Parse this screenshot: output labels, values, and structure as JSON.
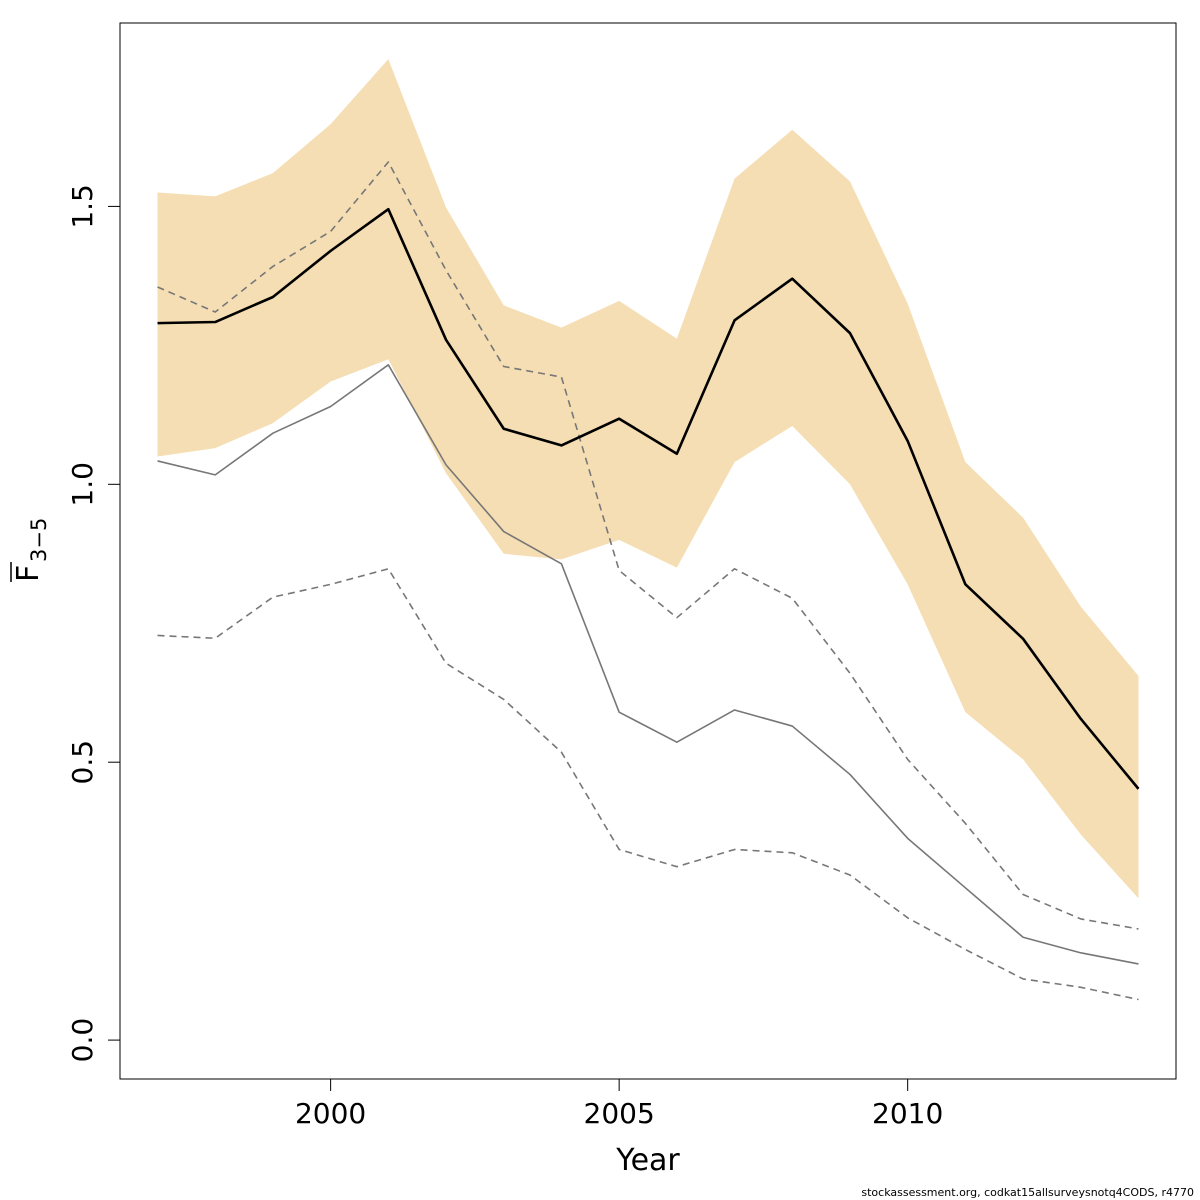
{
  "chart_data": {
    "type": "line",
    "xlabel": "Year",
    "ylabel_main": "F",
    "ylabel_sub": "3−5",
    "footer": "stockassessment.org, codkat15allsurveysnotq4CODS, r4770",
    "xlim": [
      1996.35,
      2014.65
    ],
    "ylim": [
      -0.07,
      1.83
    ],
    "x_ticks": [
      2000,
      2005,
      2010
    ],
    "x_tick_labels": [
      "2000",
      "2005",
      "2010"
    ],
    "y_ticks": [
      0.0,
      0.5,
      1.0,
      1.5
    ],
    "y_tick_labels": [
      "0.0",
      "0.5",
      "1.0",
      "1.5"
    ],
    "grid": false,
    "colors": {
      "band": "#f5deb3",
      "estimate": "#000000",
      "comparison": "#777777"
    },
    "x": [
      1997,
      1998,
      1999,
      2000,
      2001,
      2002,
      2003,
      2004,
      2005,
      2006,
      2007,
      2008,
      2009,
      2010,
      2011,
      2012,
      2013,
      2014
    ],
    "series": [
      {
        "role": "confidence_band",
        "lower": [
          1.05,
          1.065,
          1.11,
          1.185,
          1.225,
          1.02,
          0.875,
          0.865,
          0.9,
          0.85,
          1.04,
          1.105,
          1.0,
          0.82,
          0.59,
          0.505,
          0.37,
          0.255
        ],
        "upper": [
          1.525,
          1.518,
          1.56,
          1.648,
          1.765,
          1.498,
          1.322,
          1.282,
          1.33,
          1.262,
          1.55,
          1.638,
          1.545,
          1.325,
          1.04,
          0.94,
          0.78,
          0.655
        ]
      },
      {
        "role": "estimate",
        "style": "solid-thick",
        "values": [
          1.29,
          1.292,
          1.337,
          1.42,
          1.495,
          1.26,
          1.1,
          1.07,
          1.118,
          1.055,
          1.295,
          1.37,
          1.272,
          1.078,
          0.82,
          0.722,
          0.578,
          0.452
        ]
      },
      {
        "role": "comparison_estimate",
        "style": "solid-thin",
        "values": [
          1.042,
          1.017,
          1.092,
          1.14,
          1.215,
          1.035,
          0.915,
          0.857,
          0.59,
          0.536,
          0.594,
          0.565,
          0.478,
          0.363,
          0.274,
          0.185,
          0.157,
          0.137
        ]
      },
      {
        "role": "comparison_upper",
        "style": "dashed",
        "values": [
          1.355,
          1.31,
          1.392,
          1.455,
          1.58,
          1.385,
          1.212,
          1.193,
          0.845,
          0.76,
          0.848,
          0.795,
          0.66,
          0.505,
          0.39,
          0.262,
          0.218,
          0.2
        ]
      },
      {
        "role": "comparison_lower",
        "style": "dashed",
        "values": [
          0.728,
          0.723,
          0.797,
          0.82,
          0.848,
          0.678,
          0.613,
          0.518,
          0.343,
          0.312,
          0.343,
          0.337,
          0.297,
          0.22,
          0.163,
          0.11,
          0.095,
          0.073
        ]
      }
    ]
  }
}
